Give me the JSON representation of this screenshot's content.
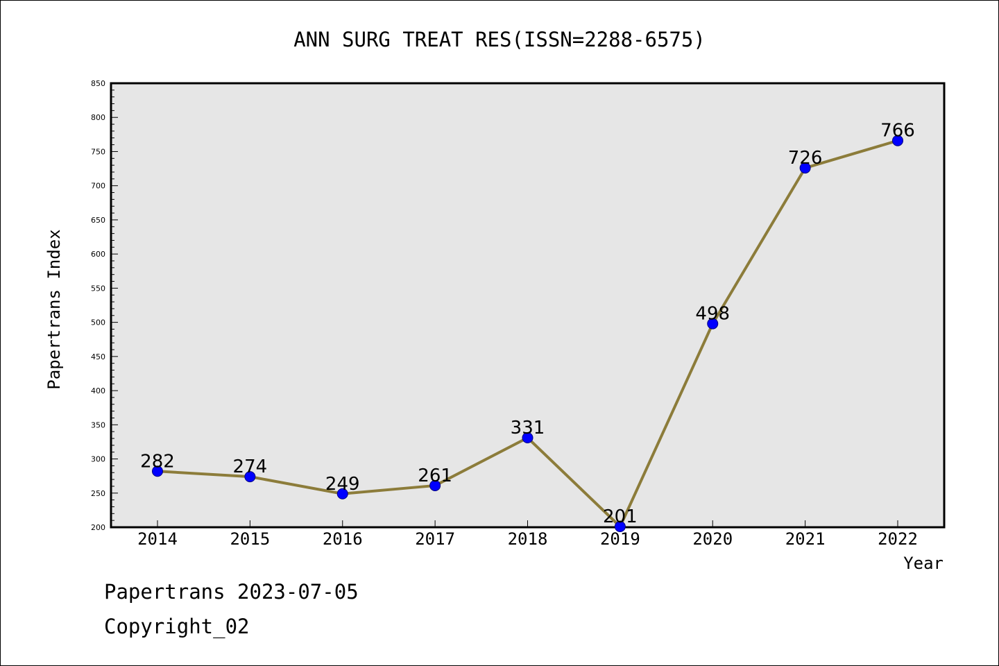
{
  "chart_data": {
    "type": "line",
    "title": "ANN SURG TREAT RES(ISSN=2288-6575)",
    "xlabel": "Year",
    "ylabel": "Papertrans Index",
    "categories": [
      "2014",
      "2015",
      "2016",
      "2017",
      "2018",
      "2019",
      "2020",
      "2021",
      "2022"
    ],
    "series": [
      {
        "values": [
          282,
          274,
          249,
          261,
          331,
          201,
          498,
          726,
          766
        ],
        "data_labels": [
          "282",
          "274",
          "249",
          "261",
          "331",
          "201",
          "498",
          "726",
          "766"
        ]
      }
    ],
    "ylim": [
      200,
      850
    ],
    "yticks": [
      "200",
      "250",
      "300",
      "350",
      "400",
      "450",
      "500",
      "550",
      "600",
      "650",
      "700",
      "750",
      "800",
      "850"
    ],
    "grid": false,
    "legend": "none",
    "colors": {
      "plot_background": "#e6e6e6",
      "line": "#8c7c3a",
      "marker": "#0000ff",
      "marker_edge": "#000080"
    }
  },
  "footer": {
    "date_text": "Papertrans 2023-07-05",
    "copyright_text": "Copyright_02"
  }
}
